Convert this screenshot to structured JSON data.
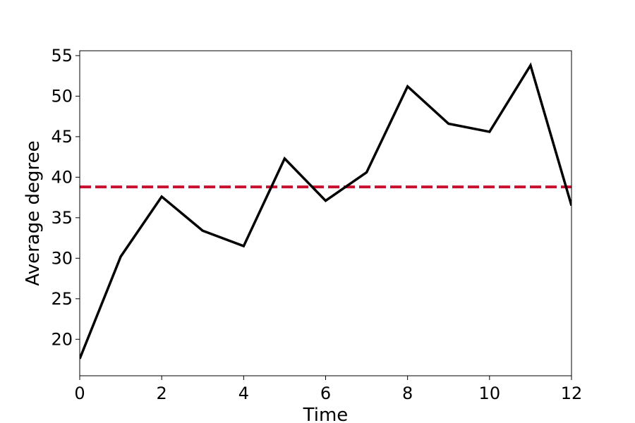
{
  "chart_data": {
    "type": "line",
    "title": "",
    "xlabel": "Time",
    "ylabel": "Average degree",
    "xlim": [
      0,
      12
    ],
    "ylim": [
      15.5,
      55.6
    ],
    "xticks": [
      0,
      2,
      4,
      6,
      8,
      10,
      12
    ],
    "yticks": [
      20,
      25,
      30,
      35,
      40,
      45,
      50,
      55
    ],
    "grid": false,
    "legend": "none",
    "series": [
      {
        "x": [
          0,
          1,
          2,
          3,
          4,
          5,
          6,
          7,
          8,
          9,
          10,
          11,
          12
        ],
        "values": [
          17.6,
          30.2,
          37.6,
          33.4,
          31.5,
          42.3,
          37.1,
          40.6,
          51.2,
          46.6,
          45.6,
          53.8,
          36.5
        ],
        "color": "#000000",
        "style": "solid"
      }
    ],
    "reference_lines": [
      {
        "orientation": "horizontal",
        "y": 38.8,
        "color": "#c8102e",
        "style": "dashed"
      }
    ]
  }
}
